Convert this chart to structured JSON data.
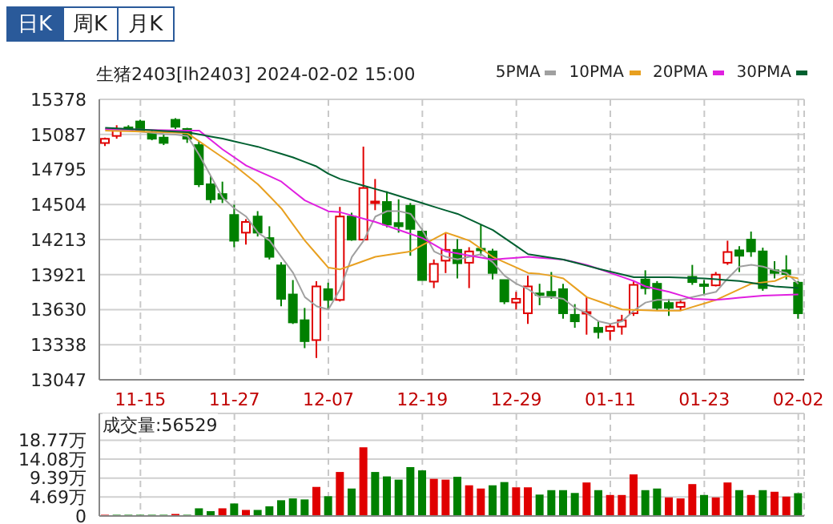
{
  "chart_data": [
    {
      "type": "candlestick",
      "title": "生猪2403[lh2403] 2024-02-02 15:00",
      "annotations": [
        "日K",
        "周K",
        "月K"
      ],
      "categories": [
        null,
        null,
        null,
        "11-15",
        null,
        null,
        null,
        null,
        null,
        null,
        null,
        "11-27",
        null,
        null,
        null,
        null,
        null,
        null,
        null,
        "12-07",
        null,
        null,
        null,
        null,
        null,
        null,
        null,
        "12-19",
        null,
        null,
        null,
        null,
        null,
        null,
        null,
        "12-29",
        null,
        null,
        null,
        null,
        null,
        null,
        null,
        "01-11",
        null,
        null,
        null,
        null,
        null,
        null,
        null,
        "01-23",
        null,
        null,
        null,
        null,
        null,
        null,
        null,
        "02-02"
      ],
      "ohlc": [
        [
          15015,
          15060,
          14990,
          15050
        ],
        [
          15074,
          15163,
          15051,
          15132
        ],
        [
          15145,
          15163,
          15118,
          15127
        ],
        [
          15194,
          15208,
          15105,
          15118
        ],
        [
          15105,
          15118,
          15038,
          15051
        ],
        [
          15060,
          15087,
          14998,
          15016
        ],
        [
          15208,
          15221,
          15132,
          15150
        ],
        [
          15132,
          15141,
          15016,
          15051
        ],
        [
          14998,
          15029,
          14649,
          14672
        ],
        [
          14672,
          14739,
          14516,
          14547
        ],
        [
          14591,
          14694,
          14516,
          14551
        ],
        [
          14417,
          14502,
          14149,
          14203
        ],
        [
          14270,
          14382,
          14171,
          14359
        ],
        [
          14404,
          14449,
          14238,
          14270
        ],
        [
          14225,
          14323,
          14047,
          14069
        ],
        [
          13998,
          14024,
          13658,
          13720
        ],
        [
          13756,
          13876,
          13511,
          13524
        ],
        [
          13542,
          13644,
          13310,
          13368
        ],
        [
          13377,
          13867,
          13229,
          13823
        ],
        [
          13800,
          13854,
          13631,
          13711
        ],
        [
          13711,
          14484,
          13698,
          14404
        ],
        [
          14404,
          14435,
          14203,
          14212
        ],
        [
          14212,
          14985,
          14203,
          14641
        ],
        [
          14522,
          14716,
          14457,
          14529
        ],
        [
          14525,
          14614,
          14314,
          14337
        ],
        [
          14350,
          14547,
          14270,
          14323
        ],
        [
          14493,
          14516,
          14078,
          14301
        ],
        [
          14279,
          14301,
          13876,
          13876
        ],
        [
          13863,
          14047,
          13809,
          14010
        ],
        [
          14037,
          14270,
          13934,
          14127
        ],
        [
          14127,
          14216,
          13890,
          14016
        ],
        [
          14020,
          14149,
          13809,
          14114
        ],
        [
          14136,
          14337,
          14078,
          14127
        ],
        [
          14114,
          14136,
          13881,
          13935
        ],
        [
          13876,
          13876,
          13676,
          13698
        ],
        [
          13689,
          13778,
          13631,
          13720
        ],
        [
          13600,
          13912,
          13511,
          13823
        ],
        [
          13765,
          13845,
          13667,
          13760
        ],
        [
          13778,
          13943,
          13720,
          13747
        ],
        [
          13800,
          13845,
          13555,
          13600
        ],
        [
          13587,
          13676,
          13479,
          13533
        ],
        [
          13600,
          13734,
          13422,
          13610
        ],
        [
          13479,
          13533,
          13390,
          13444
        ],
        [
          13453,
          13511,
          13377,
          13489
        ],
        [
          13489,
          13587,
          13422,
          13542
        ],
        [
          13600,
          13867,
          13578,
          13836
        ],
        [
          13881,
          13957,
          13756,
          13809
        ],
        [
          13845,
          13867,
          13622,
          13645
        ],
        [
          13685,
          13720,
          13578,
          13645
        ],
        [
          13653,
          13720,
          13622,
          13689
        ],
        [
          13903,
          14002,
          13836,
          13859
        ],
        [
          13840,
          13876,
          13756,
          13836
        ],
        [
          13832,
          13943,
          13823,
          13921
        ],
        [
          14020,
          14203,
          14002,
          14109
        ],
        [
          14123,
          14158,
          13943,
          14078
        ],
        [
          14212,
          14279,
          14069,
          14114
        ],
        [
          14114,
          14145,
          13787,
          13809
        ],
        [
          13957,
          14033,
          13890,
          13935
        ],
        [
          13957,
          14082,
          13881,
          13926
        ],
        [
          13854,
          13867,
          13555,
          13600
        ]
      ],
      "colors": [
        "#e00000",
        "#e00000",
        "#008000",
        "#008000",
        "#008000",
        "#008000",
        "#008000",
        "#008000",
        "#008000",
        "#008000",
        "#008000",
        "#008000",
        "#e00000",
        "#008000",
        "#008000",
        "#008000",
        "#008000",
        "#008000",
        "#e00000",
        "#008000",
        "#e00000",
        "#008000",
        "#e00000",
        "#e00000",
        "#008000",
        "#008000",
        "#008000",
        "#008000",
        "#e00000",
        "#e00000",
        "#008000",
        "#e00000",
        "#008000",
        "#008000",
        "#008000",
        "#e00000",
        "#e00000",
        "#008000",
        "#008000",
        "#008000",
        "#008000",
        "#e00000",
        "#008000",
        "#e00000",
        "#e00000",
        "#e00000",
        "#008000",
        "#008000",
        "#008000",
        "#e00000",
        "#008000",
        "#008000",
        "#e00000",
        "#e00000",
        "#008000",
        "#008000",
        "#008000",
        "#008000",
        "#008000",
        "#008000"
      ],
      "series": [
        {
          "name": "5PMA",
          "type": "line",
          "color": "#a0a0a0",
          "values": [
            15132,
            15125,
            15118,
            15110,
            15100,
            15090,
            15085,
            15074,
            14917,
            14739,
            14560,
            14471,
            14404,
            14270,
            14203,
            14069,
            13935,
            13734,
            13658,
            13631,
            13800,
            14069,
            14203,
            14404,
            14449,
            14449,
            14426,
            14292,
            14114,
            14069,
            14047,
            14069,
            14091,
            14024,
            13912,
            13845,
            13800,
            13734,
            13734,
            13720,
            13645,
            13600,
            13533,
            13511,
            13533,
            13622,
            13689,
            13711,
            13711,
            13711,
            13734,
            13756,
            13778,
            13890,
            13988,
            14002,
            13988,
            13957,
            13935,
            13845
          ]
        },
        {
          "name": "10PMA",
          "type": "line",
          "color": "#e8a020",
          "values": [
            15118,
            15115,
            15113,
            15110,
            15108,
            15105,
            15101,
            15096,
            15029,
            14962,
            14895,
            14828,
            14750,
            14672,
            14572,
            14471,
            14337,
            14203,
            14091,
            13979,
            13965,
            13999,
            14034,
            14069,
            14084,
            14099,
            14114,
            14166,
            14218,
            14270,
            14237,
            14203,
            14136,
            14069,
            14024,
            13980,
            13935,
            13927,
            13912,
            13890,
            13812,
            13734,
            13700,
            13665,
            13631,
            13628,
            13625,
            13622,
            13622,
            13622,
            13652,
            13681,
            13711,
            13756,
            13800,
            13845,
            13857,
            13868,
            13910,
            13890
          ]
        },
        {
          "name": "20PMA",
          "type": "line",
          "color": "#e020e0",
          "values": [
            15132,
            15130,
            15128,
            15126,
            15124,
            15122,
            15120,
            15119,
            15118,
            15040,
            14962,
            14895,
            14828,
            14783,
            14739,
            14694,
            14616,
            14538,
            14493,
            14448,
            14440,
            14413,
            14386,
            14359,
            14326,
            14292,
            14259,
            14225,
            14170,
            14114,
            14097,
            14080,
            14063,
            14046,
            14054,
            14061,
            14069,
            14061,
            14054,
            14046,
            14024,
            14002,
            13969,
            13935,
            13902,
            13868,
            13823,
            13800,
            13778,
            13749,
            13720,
            13716,
            13711,
            13720,
            13729,
            13738,
            13747,
            13750,
            13753,
            13756
          ]
        },
        {
          "name": "30PMA",
          "type": "line",
          "color": "#006030",
          "values": [
            15141,
            15136,
            15131,
            15126,
            15121,
            15115,
            15110,
            15105,
            15087,
            15069,
            15051,
            15029,
            15006,
            14984,
            14954,
            14925,
            14895,
            14858,
            14820,
            14760,
            14716,
            14688,
            14660,
            14633,
            14605,
            14575,
            14545,
            14515,
            14485,
            14455,
            14426,
            14381,
            14337,
            14292,
            14225,
            14158,
            14091,
            14076,
            14061,
            14046,
            14021,
            13995,
            13970,
            13946,
            13923,
            13899,
            13899,
            13899,
            13899,
            13896,
            13893,
            13890,
            13883,
            13875,
            13868,
            13853,
            13838,
            13823,
            13816,
            13810
          ]
        }
      ],
      "ylim": [
        13047,
        15378
      ],
      "yticks": [
        13047,
        13338,
        13630,
        13921,
        14213,
        14504,
        14795,
        15087,
        15378
      ],
      "grid": true,
      "legend": "top right"
    },
    {
      "type": "bar",
      "title": "成交量:56529",
      "categories": [
        null,
        null,
        null,
        null,
        null,
        null,
        null,
        null,
        null,
        null,
        null,
        null,
        null,
        null,
        null,
        null,
        null,
        null,
        null,
        null,
        null,
        null,
        null,
        null,
        null,
        null,
        null,
        null,
        null,
        null,
        null,
        null,
        null,
        null,
        null,
        null,
        null,
        null,
        null,
        null,
        null,
        null,
        null,
        null,
        null,
        null,
        null,
        null,
        null,
        null,
        null,
        null,
        null,
        null,
        null,
        null,
        null,
        null,
        null,
        null
      ],
      "values": [
        0.3,
        0.3,
        0.3,
        0.3,
        0.3,
        0.3,
        0.5,
        0.3,
        1.9,
        1.2,
        1.9,
        3.1,
        1.5,
        1.5,
        2.4,
        3.9,
        4.35,
        4.1,
        7.2,
        4.9,
        10.9,
        6.8,
        17.0,
        10.9,
        9.8,
        9.0,
        12.1,
        11.3,
        9.2,
        9.0,
        9.7,
        7.6,
        6.8,
        7.6,
        8.4,
        7.1,
        7.1,
        5.3,
        6.4,
        6.4,
        5.7,
        8.3,
        6.4,
        5.2,
        5.2,
        10.3,
        6.4,
        6.8,
        4.6,
        4.35,
        7.9,
        5.2,
        4.6,
        8.3,
        6.4,
        5.2,
        6.4,
        6.0,
        4.8,
        5.65
      ],
      "colors": [
        "#e00000",
        "#008000",
        "#008000",
        "#008000",
        "#008000",
        "#008000",
        "#e00000",
        "#008000",
        "#008000",
        "#008000",
        "#e00000",
        "#008000",
        "#e00000",
        "#008000",
        "#008000",
        "#008000",
        "#008000",
        "#008000",
        "#e00000",
        "#008000",
        "#e00000",
        "#008000",
        "#e00000",
        "#008000",
        "#008000",
        "#008000",
        "#008000",
        "#008000",
        "#e00000",
        "#e00000",
        "#008000",
        "#e00000",
        "#e00000",
        "#008000",
        "#008000",
        "#e00000",
        "#e00000",
        "#008000",
        "#008000",
        "#008000",
        "#008000",
        "#e00000",
        "#008000",
        "#e00000",
        "#e00000",
        "#e00000",
        "#008000",
        "#008000",
        "#e00000",
        "#e00000",
        "#e00000",
        "#008000",
        "#e00000",
        "#e00000",
        "#008000",
        "#e00000",
        "#008000",
        "#e00000",
        "#e00000",
        "#008000"
      ],
      "ylim": [
        0,
        25.4
      ],
      "yticks": [
        0,
        {
          "value": 4.69,
          "label": "4.69万"
        },
        {
          "value": 9.39,
          "label": "9.39万"
        },
        {
          "value": 14.08,
          "label": "14.08万"
        },
        {
          "value": 18.77,
          "label": "18.77万"
        }
      ],
      "grid": true
    }
  ]
}
